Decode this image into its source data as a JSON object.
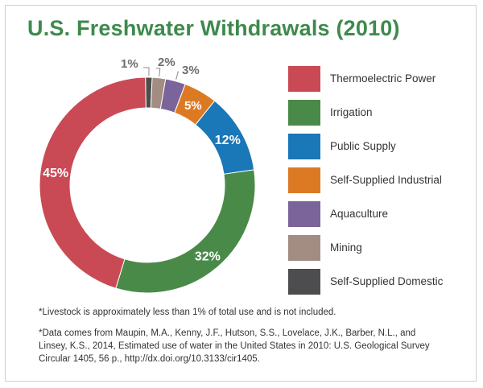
{
  "title": "U.S. Freshwater Withdrawals (2010)",
  "colors": {
    "title": "#3e8a4d",
    "text": "#333333",
    "border": "#cfcfcf"
  },
  "chart_data": {
    "type": "pie",
    "title": "U.S. Freshwater Withdrawals (2010)",
    "donut": true,
    "legend_position": "right",
    "slices": [
      {
        "name": "Thermoelectric Power",
        "value": 45,
        "label": "45%",
        "color": "#c94a55"
      },
      {
        "name": "Irrigation",
        "value": 32,
        "label": "32%",
        "color": "#4a8a48"
      },
      {
        "name": "Public Supply",
        "value": 12,
        "label": "12%",
        "color": "#1a77b8"
      },
      {
        "name": "Self-Supplied Industrial",
        "value": 5,
        "label": "5%",
        "color": "#dc7a24"
      },
      {
        "name": "Aquaculture",
        "value": 3,
        "label": "3%",
        "color": "#7a6499"
      },
      {
        "name": "Mining",
        "value": 2,
        "label": "2%",
        "color": "#a38c82"
      },
      {
        "name": "Self-Supplied Domestic",
        "value": 1,
        "label": "1%",
        "color": "#4d4d4f"
      }
    ]
  },
  "notes": {
    "livestock": "*Livestock is approximately less than 1% of total use and is not included.",
    "source_lines": [
      "*Data comes from Maupin, M.A., Kenny, J.F., Hutson, S.S., Lovelace, J.K., Barber, N.L., and",
      "Linsey, K.S., 2014, Estimated use of water in the United States in 2010: U.S. Geological Survey",
      "Circular 1405, 56 p., http://dx.doi.org/10.3133/cir1405."
    ]
  }
}
